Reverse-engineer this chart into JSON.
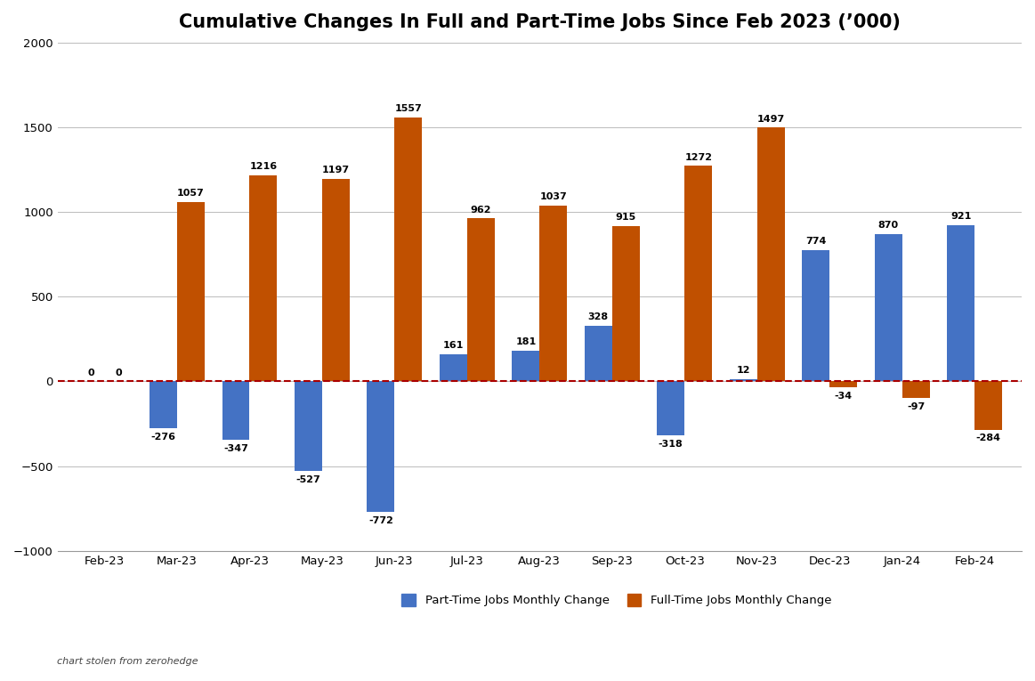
{
  "title": "Cumulative Changes In Full and Part-Time Jobs Since Feb 2023 (’000)",
  "categories": [
    "Feb-23",
    "Mar-23",
    "Apr-23",
    "May-23",
    "Jun-23",
    "Jul-23",
    "Aug-23",
    "Sep-23",
    "Oct-23",
    "Nov-23",
    "Dec-23",
    "Jan-24",
    "Feb-24"
  ],
  "part_time": [
    0,
    -276,
    -347,
    -527,
    -772,
    161,
    181,
    328,
    -318,
    12,
    774,
    870,
    921
  ],
  "full_time": [
    0,
    1057,
    1216,
    1197,
    1557,
    962,
    1037,
    915,
    1272,
    1497,
    -34,
    -97,
    -284
  ],
  "part_time_color": "#4472C4",
  "full_time_color": "#C05000",
  "ylim": [
    -1000,
    2000
  ],
  "yticks": [
    -1000,
    -500,
    0,
    500,
    1000,
    1500,
    2000
  ],
  "bar_width": 0.38,
  "legend_part_time": "Part-Time Jobs Monthly Change",
  "legend_full_time": "Full-Time Jobs Monthly Change",
  "watermark": "chart stolen from zerohedge",
  "background_color": "#FFFFFF",
  "grid_color": "#BBBBBB",
  "dashed_line_color": "#AA0000",
  "title_fontsize": 15,
  "axis_label_fontsize": 9.5,
  "bar_label_fontsize": 8
}
